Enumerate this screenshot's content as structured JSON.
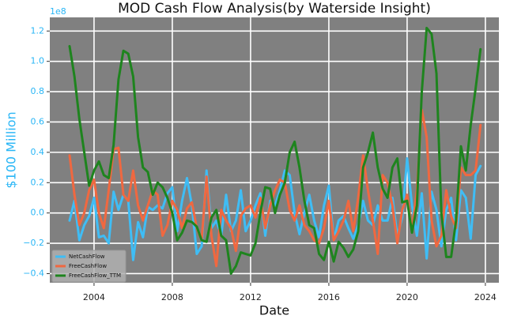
{
  "chart_data": {
    "type": "line",
    "title": "MOD Cash Flow Analysis(by Waterside Insight)",
    "x_label": "Date",
    "y_label": "$100 Million",
    "y_offset_label": "1e8",
    "xlim": [
      2001.74,
      2024.69
    ],
    "ylim": [
      -0.46,
      1.29
    ],
    "xticks": [
      2004,
      2008,
      2012,
      2016,
      2020,
      2024
    ],
    "yticks": [
      1.2,
      {
        "value": 1,
        "label": "1.0"
      },
      0.8,
      0.6,
      0.4,
      0.2,
      {
        "value": 0,
        "label": "0.0"
      },
      {
        "value": -0.2,
        "label": "−0.2"
      },
      {
        "value": -0.4,
        "label": "−0.4"
      }
    ],
    "grid": true,
    "legend": "lower left",
    "x": [
      2002.75,
      2003.0,
      2003.25,
      2003.5,
      2003.75,
      2004.0,
      2004.25,
      2004.5,
      2004.75,
      2005.0,
      2005.25,
      2005.5,
      2005.75,
      2006.0,
      2006.25,
      2006.5,
      2006.75,
      2007.0,
      2007.25,
      2007.5,
      2007.75,
      2008.0,
      2008.25,
      2008.5,
      2008.75,
      2009.0,
      2009.25,
      2009.5,
      2009.75,
      2010.0,
      2010.25,
      2010.5,
      2010.75,
      2011.0,
      2011.25,
      2011.5,
      2011.75,
      2012.0,
      2012.25,
      2012.5,
      2012.75,
      2013.0,
      2013.25,
      2013.5,
      2013.75,
      2014.0,
      2014.25,
      2014.5,
      2014.75,
      2015.0,
      2015.25,
      2015.5,
      2015.75,
      2016.0,
      2016.25,
      2016.5,
      2016.75,
      2017.0,
      2017.25,
      2017.5,
      2017.75,
      2018.0,
      2018.25,
      2018.5,
      2018.75,
      2019.0,
      2019.25,
      2019.5,
      2019.75,
      2020.0,
      2020.25,
      2020.5,
      2020.75,
      2021.0,
      2021.25,
      2021.5,
      2021.75,
      2022.0,
      2022.25,
      2022.5,
      2022.75,
      2023.0,
      2023.25,
      2023.5,
      2023.75
    ],
    "series": [
      {
        "name": "NetCashFlow",
        "color": "#3fbdf5",
        "values": [
          -0.05,
          0.08,
          -0.18,
          -0.08,
          -0.02,
          0.1,
          -0.16,
          -0.15,
          -0.2,
          0.14,
          0.02,
          0.12,
          0.08,
          -0.31,
          -0.06,
          -0.16,
          0.04,
          0.02,
          0.05,
          0.03,
          0.13,
          0.17,
          -0.12,
          0.08,
          0.23,
          0.05,
          -0.27,
          -0.22,
          0.28,
          -0.1,
          -0.05,
          -0.15,
          0.12,
          -0.12,
          -0.05,
          0.15,
          -0.12,
          -0.05,
          0.05,
          0.13,
          -0.15,
          0.08,
          0.05,
          0.15,
          0.28,
          0.25,
          0.0,
          -0.14,
          0.0,
          0.12,
          -0.05,
          -0.16,
          0.05,
          0.18,
          -0.18,
          -0.05,
          -0.02,
          -0.1,
          -0.17,
          -0.08,
          0.08,
          -0.05,
          -0.08,
          0.05,
          -0.05,
          -0.05,
          0.1,
          -0.15,
          -0.03,
          0.36,
          0.05,
          -0.15,
          0.13,
          -0.3,
          0.14,
          0.02,
          -0.22,
          0.02,
          0.1,
          -0.18,
          0.15,
          0.1,
          -0.17,
          0.25,
          0.31
        ]
      },
      {
        "name": "FreeCashFlow",
        "color": "#f06840",
        "values": [
          0.38,
          0.12,
          -0.08,
          0.0,
          0.15,
          0.22,
          0.0,
          -0.1,
          0.15,
          0.42,
          0.43,
          0.12,
          0.08,
          0.28,
          0.05,
          -0.05,
          0.05,
          0.15,
          0.12,
          -0.15,
          -0.08,
          0.08,
          0.02,
          -0.1,
          0.03,
          0.07,
          -0.1,
          -0.18,
          0.24,
          -0.15,
          -0.35,
          0.02,
          -0.05,
          -0.1,
          -0.25,
          -0.02,
          0.03,
          0.05,
          -0.03,
          0.1,
          -0.1,
          0.05,
          0.15,
          0.22,
          0.2,
          0.02,
          -0.05,
          0.05,
          -0.08,
          -0.12,
          -0.18,
          -0.2,
          -0.1,
          0.08,
          -0.18,
          -0.12,
          -0.05,
          0.08,
          -0.12,
          0.1,
          0.38,
          0.15,
          -0.05,
          -0.27,
          0.25,
          0.2,
          0.05,
          -0.2,
          0.02,
          0.12,
          -0.12,
          0.15,
          0.68,
          0.5,
          -0.05,
          -0.22,
          -0.15,
          0.15,
          -0.02,
          -0.1,
          0.3,
          0.25,
          0.25,
          0.28,
          0.58
        ]
      },
      {
        "name": "FreeCashFlow_TTM",
        "color": "#1e841e",
        "values": [
          1.1,
          0.9,
          0.62,
          0.4,
          0.18,
          0.28,
          0.34,
          0.25,
          0.23,
          0.45,
          0.88,
          1.07,
          1.05,
          0.9,
          0.5,
          0.3,
          0.27,
          0.12,
          0.2,
          0.17,
          0.1,
          0.0,
          -0.18,
          -0.13,
          -0.05,
          -0.06,
          -0.09,
          -0.18,
          -0.19,
          -0.03,
          0.02,
          -0.15,
          -0.18,
          -0.4,
          -0.35,
          -0.26,
          -0.27,
          -0.28,
          -0.2,
          0.0,
          0.17,
          0.16,
          0.0,
          0.12,
          0.2,
          0.4,
          0.47,
          0.3,
          0.08,
          -0.08,
          -0.1,
          -0.27,
          -0.31,
          -0.19,
          -0.32,
          -0.19,
          -0.23,
          -0.29,
          -0.24,
          -0.12,
          0.3,
          0.4,
          0.53,
          0.3,
          0.16,
          0.1,
          0.3,
          0.36,
          0.07,
          0.08,
          -0.13,
          0.05,
          0.8,
          1.22,
          1.18,
          0.92,
          0.0,
          -0.29,
          -0.29,
          -0.05,
          0.44,
          0.28,
          0.58,
          0.82,
          1.08
        ]
      }
    ]
  }
}
